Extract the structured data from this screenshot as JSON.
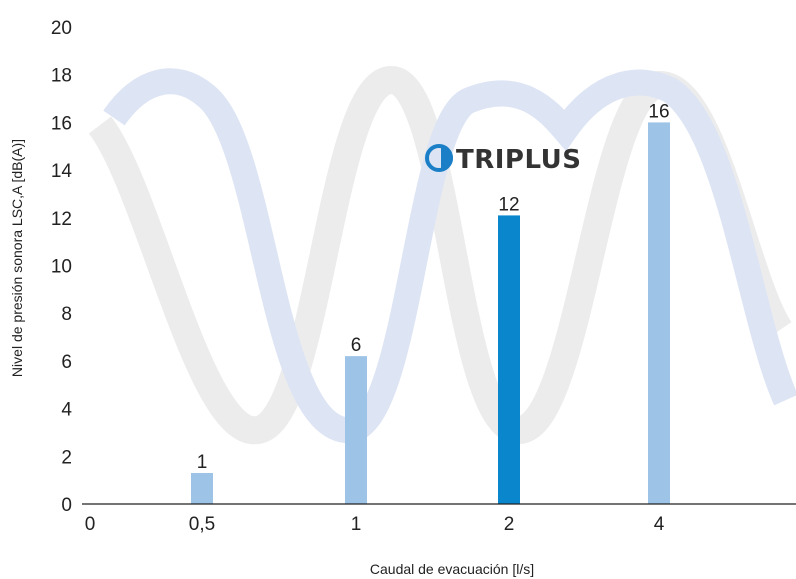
{
  "chart_data": {
    "type": "bar",
    "title": "",
    "xlabel": "Caudal de evacuación [l/s]",
    "ylabel": "Nivel de presión sonora LSC,A [dB(A)]",
    "x_ticks": [
      "0",
      "0,5",
      "1",
      "2",
      "4"
    ],
    "categories": [
      "0,5",
      "1",
      "2",
      "4"
    ],
    "values": [
      1.3,
      6.2,
      12.1,
      16
    ],
    "data_labels": [
      "1",
      "6",
      "12",
      "16"
    ],
    "highlight_index": 2,
    "ylim": [
      0,
      20
    ],
    "y_ticks": [
      0,
      2,
      4,
      6,
      8,
      10,
      12,
      14,
      16,
      18,
      20
    ],
    "grid": false,
    "legend": "none",
    "colors": {
      "bar": "#9dc3e6",
      "bar_highlight": "#0a86cc",
      "axis": "#222222",
      "wave_grey": "#ececec",
      "wave_blue": "#dde4f4",
      "logo_blue": "#1a7fc6"
    }
  },
  "logo": {
    "text": "TRIPLUS",
    "icon": "triplus-logo-icon"
  }
}
